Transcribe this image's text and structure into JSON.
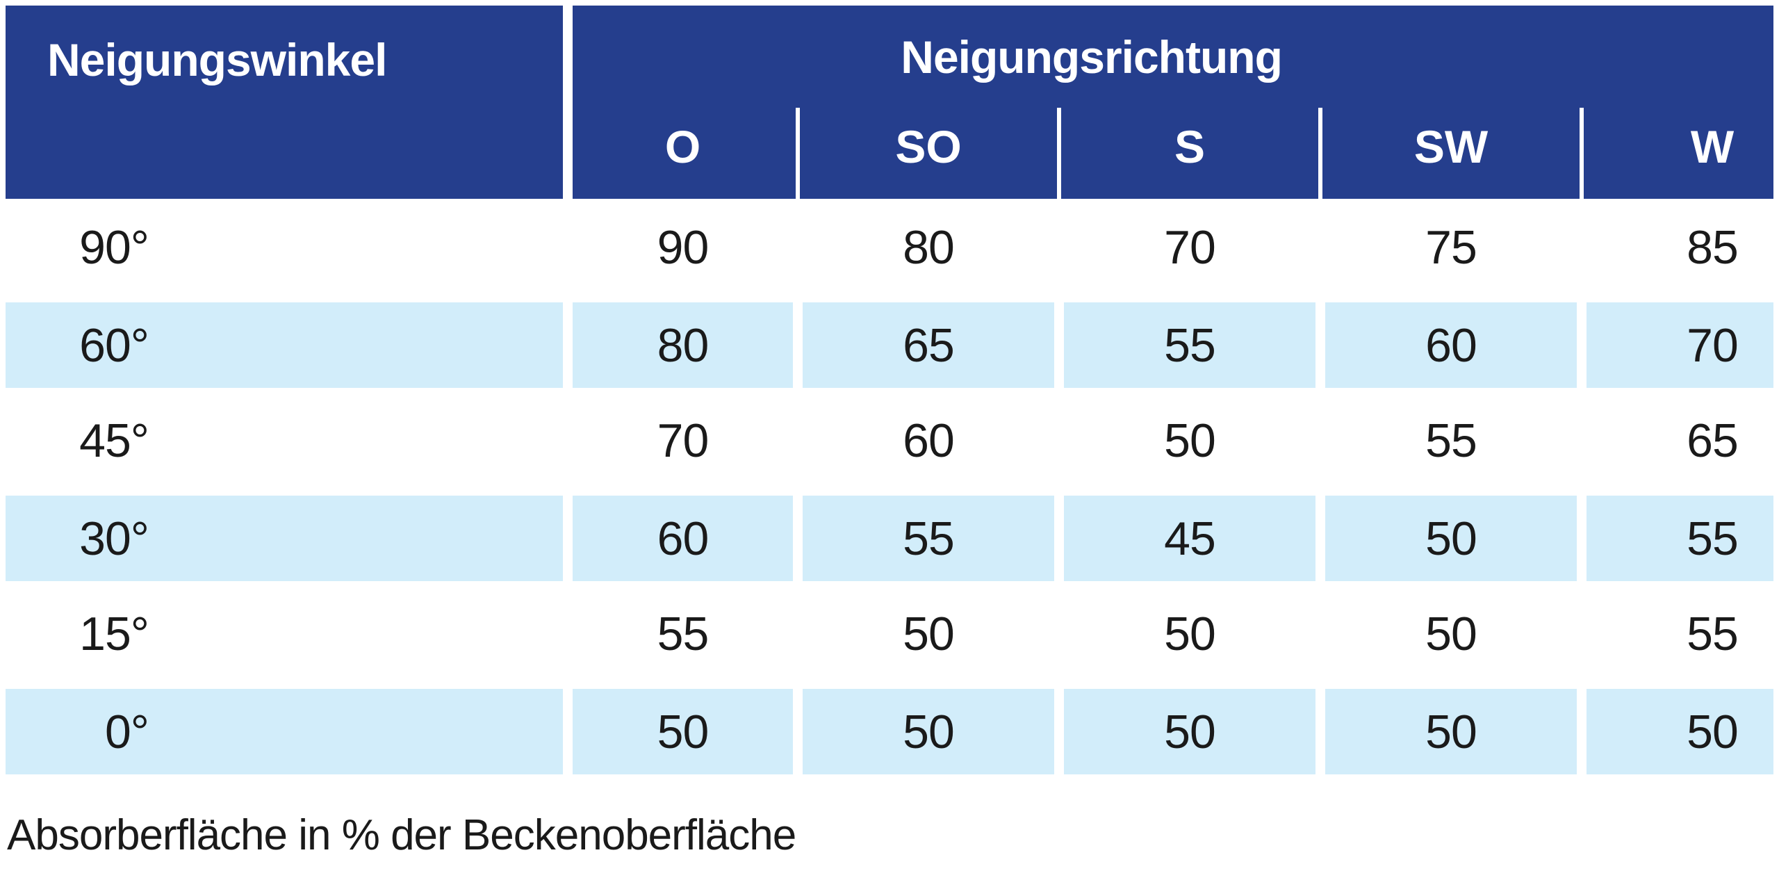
{
  "table": {
    "col1_header": "Neigungswinkel",
    "group_header": "Neigungsrichtung",
    "columns": [
      "O",
      "SO",
      "S",
      "SW",
      "W"
    ],
    "rows": [
      {
        "label": "90°",
        "values": [
          "90",
          "80",
          "70",
          "75",
          "85"
        ]
      },
      {
        "label": "60°",
        "values": [
          "80",
          "65",
          "55",
          "60",
          "70"
        ]
      },
      {
        "label": "45°",
        "values": [
          "70",
          "60",
          "50",
          "55",
          "65"
        ]
      },
      {
        "label": "30°",
        "values": [
          "60",
          "55",
          "45",
          "50",
          "55"
        ]
      },
      {
        "label": "15°",
        "values": [
          "55",
          "50",
          "50",
          "50",
          "55"
        ]
      },
      {
        "label": "0°",
        "values": [
          "50",
          "50",
          "50",
          "50",
          "50"
        ]
      }
    ],
    "caption": "Absorberfläche in % der Beckenoberfläche"
  },
  "chart_data": {
    "type": "table",
    "title": "Neigungsrichtung",
    "row_header": "Neigungswinkel",
    "categories": [
      "O",
      "SO",
      "S",
      "SW",
      "W"
    ],
    "series": [
      {
        "name": "90°",
        "values": [
          90,
          80,
          70,
          75,
          85
        ]
      },
      {
        "name": "60°",
        "values": [
          80,
          65,
          55,
          60,
          70
        ]
      },
      {
        "name": "45°",
        "values": [
          70,
          60,
          50,
          55,
          65
        ]
      },
      {
        "name": "30°",
        "values": [
          60,
          55,
          45,
          50,
          55
        ]
      },
      {
        "name": "15°",
        "values": [
          55,
          50,
          50,
          50,
          55
        ]
      },
      {
        "name": "0°",
        "values": [
          50,
          50,
          50,
          50,
          50
        ]
      }
    ],
    "caption": "Absorberfläche in % der Beckenoberfläche"
  },
  "colors": {
    "header_bg": "#253E8D",
    "header_text": "#FFFFFF",
    "stripe_bg": "#D2EDFA",
    "body_text": "#1A1A1A"
  }
}
